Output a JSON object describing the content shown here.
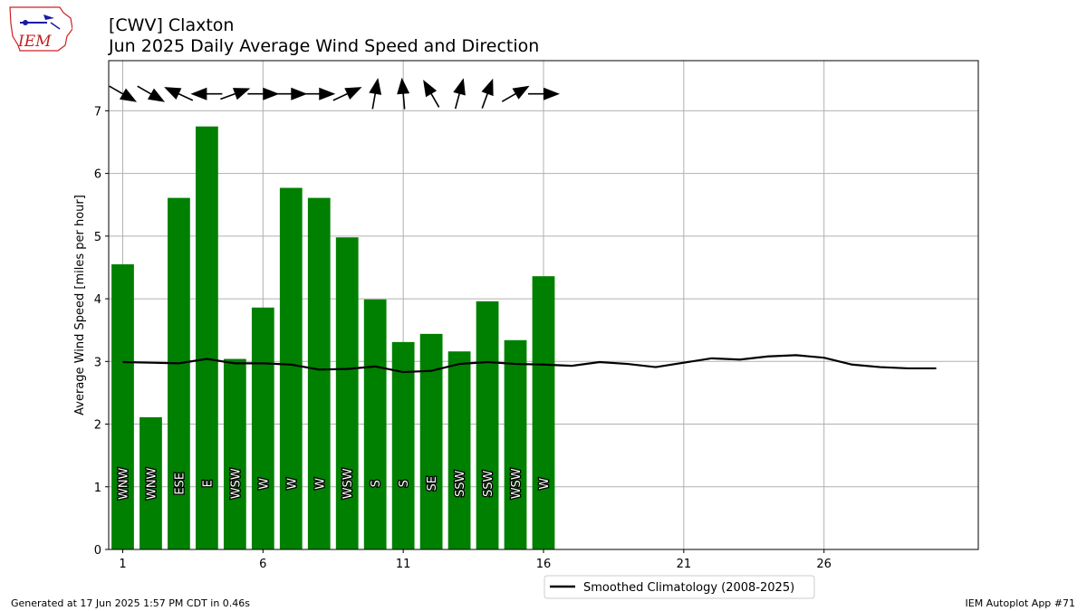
{
  "header": {
    "title": "[CWV] Claxton",
    "subtitle": "Jun 2025 Daily Average Wind Speed and Direction",
    "logo_text": "IEM"
  },
  "footer": {
    "generated": "Generated at 17 Jun 2025 1:57 PM CDT in 0.46s",
    "app": "IEM Autoplot App #71"
  },
  "colors": {
    "bar": "#008000",
    "climatology_line": "#000000",
    "grid": "#b0b0b0",
    "arrow": "#000000"
  },
  "chart_data": {
    "type": "bar",
    "ylabel": "Average Wind Speed [miles per hour]",
    "xlabel": "",
    "xlim": [
      0.5,
      31.5
    ],
    "ylim": [
      0,
      7.8
    ],
    "x_ticks": [
      1,
      6,
      11,
      16,
      21,
      26
    ],
    "y_ticks": [
      0,
      1,
      2,
      3,
      4,
      5,
      6,
      7
    ],
    "grid": true,
    "legend_position": "below-center",
    "days": [
      1,
      2,
      3,
      4,
      5,
      6,
      7,
      8,
      9,
      10,
      11,
      12,
      13,
      14,
      15,
      16
    ],
    "wind_speed": [
      4.55,
      2.11,
      5.61,
      6.75,
      3.04,
      3.86,
      5.77,
      5.61,
      4.98,
      3.99,
      3.31,
      3.44,
      3.16,
      3.96,
      3.34,
      4.36
    ],
    "direction_labels": [
      "WNW",
      "WNW",
      "ESE",
      "E",
      "WSW",
      "W",
      "W",
      "W",
      "WSW",
      "S",
      "S",
      "SE",
      "SSW",
      "SSW",
      "WSW",
      "W"
    ],
    "direction_degrees": [
      300,
      300,
      115,
      90,
      250,
      270,
      270,
      270,
      245,
      190,
      175,
      150,
      195,
      200,
      240,
      270
    ],
    "climatology": {
      "name": "Smoothed Climatology (2008-2025)",
      "x": [
        1,
        2,
        3,
        4,
        5,
        6,
        7,
        8,
        9,
        10,
        11,
        12,
        13,
        14,
        15,
        16,
        17,
        18,
        19,
        20,
        21,
        22,
        23,
        24,
        25,
        26,
        27,
        28,
        29,
        30
      ],
      "values": [
        2.99,
        2.98,
        2.97,
        3.04,
        2.97,
        2.97,
        2.95,
        2.87,
        2.88,
        2.92,
        2.83,
        2.85,
        2.96,
        2.99,
        2.96,
        2.95,
        2.93,
        2.99,
        2.96,
        2.91,
        2.98,
        3.05,
        3.03,
        3.08,
        3.1,
        3.06,
        2.95,
        2.91,
        2.89,
        2.89
      ]
    }
  }
}
